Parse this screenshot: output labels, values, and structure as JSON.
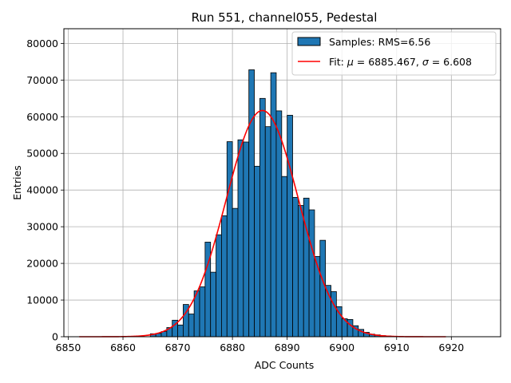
{
  "chart_data": {
    "type": "bar",
    "title": "Run 551, channel055, Pedestal",
    "xlabel": "ADC Counts",
    "ylabel": "Entries",
    "xlim": [
      6849.2,
      6929.0
    ],
    "ylim": [
      0,
      84000
    ],
    "grid": true,
    "legend_position": "top-right",
    "x_ticks": [
      6850,
      6860,
      6870,
      6880,
      6890,
      6900,
      6910,
      6920
    ],
    "y_ticks": [
      0,
      10000,
      20000,
      30000,
      40000,
      50000,
      60000,
      70000,
      80000
    ],
    "bin_width": 1,
    "bar_color": "#1f77b4",
    "fit_color": "#ff0000",
    "legend": {
      "histogram_label": "Samples: RMS=6.56",
      "fit_prefix": "Fit: ",
      "mu_symbol": "μ",
      "fit_mid": " = 6885.467, ",
      "sigma_symbol": "σ",
      "fit_suffix": " = 6.608"
    },
    "histogram": {
      "bin_edges_start": 6852,
      "counts": [
        0,
        0,
        0,
        0,
        0,
        0,
        0,
        0,
        0,
        0,
        0,
        0,
        0,
        800,
        900,
        1400,
        2500,
        4500,
        3200,
        8800,
        6200,
        12500,
        13600,
        25800,
        17600,
        27800,
        33000,
        53200,
        35000,
        53700,
        53100,
        72800,
        46500,
        65000,
        57300,
        72000,
        61600,
        43700,
        60400,
        38000,
        35800,
        37800,
        34600,
        21900,
        26300,
        14000,
        12300,
        8200,
        4900,
        4700,
        3000,
        2000,
        1200,
        700,
        500,
        300,
        200,
        100,
        0,
        0,
        0,
        0,
        0,
        0,
        0,
        0,
        0,
        0,
        0,
        0,
        0,
        0,
        0,
        0
      ]
    },
    "fit": {
      "name": "Gaussian fit",
      "mu": 6885.467,
      "sigma": 6.608,
      "amplitude": 61700,
      "x_range": [
        6852,
        6919
      ]
    }
  }
}
